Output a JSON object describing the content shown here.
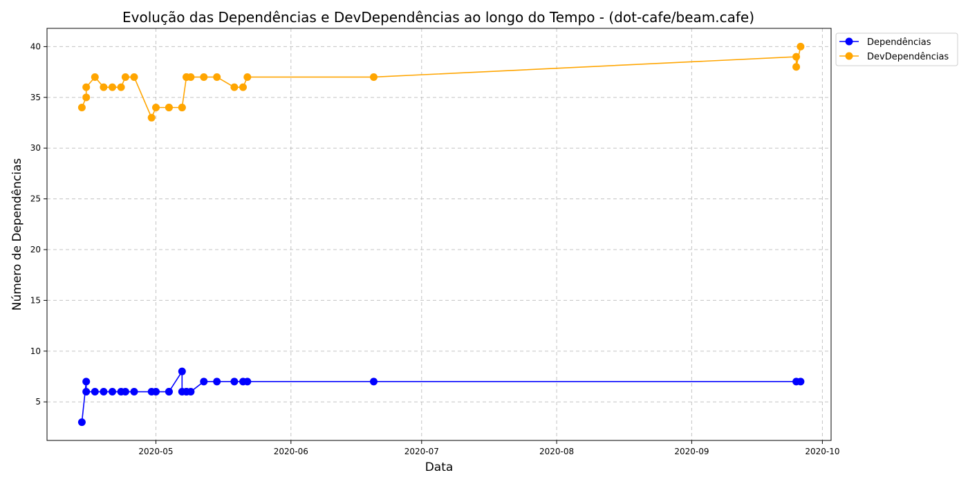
{
  "chart_data": {
    "type": "line",
    "title": "Evolução das Dependências e DevDependências ao longo do Tempo - (dot-cafe/beam.cafe)",
    "xlabel": "Data",
    "ylabel": "Número de Dependências",
    "x_tick_labels": [
      "2020-05",
      "2020-06",
      "2020-07",
      "2020-08",
      "2020-09",
      "2020-10"
    ],
    "x_ticks": [
      "2020-05-01",
      "2020-06-01",
      "2020-07-01",
      "2020-08-01",
      "2020-09-01",
      "2020-10-01"
    ],
    "y_ticks": [
      5,
      10,
      15,
      20,
      25,
      30,
      35,
      40
    ],
    "xlim": [
      "2020-04-06",
      "2020-10-03"
    ],
    "ylim": [
      1.2,
      41.8
    ],
    "grid": true,
    "legend_position": "outside-top-right",
    "series": [
      {
        "name": "Dependências",
        "color": "#0000ff",
        "x": [
          "2020-04-14",
          "2020-04-15",
          "2020-04-15",
          "2020-04-17",
          "2020-04-19",
          "2020-04-21",
          "2020-04-23",
          "2020-04-24",
          "2020-04-26",
          "2020-04-30",
          "2020-05-01",
          "2020-05-04",
          "2020-05-04",
          "2020-05-07",
          "2020-05-07",
          "2020-05-08",
          "2020-05-08",
          "2020-05-09",
          "2020-05-12",
          "2020-05-15",
          "2020-05-19",
          "2020-05-21",
          "2020-05-22",
          "2020-06-20",
          "2020-09-25",
          "2020-09-26"
        ],
        "y": [
          3,
          7,
          6,
          6,
          6,
          6,
          6,
          6,
          6,
          6,
          6,
          6,
          6,
          8,
          6,
          6,
          6,
          6,
          7,
          7,
          7,
          7,
          7,
          7,
          7,
          7
        ]
      },
      {
        "name": "DevDependências",
        "color": "#ffa500",
        "x": [
          "2020-04-14",
          "2020-04-15",
          "2020-04-15",
          "2020-04-17",
          "2020-04-19",
          "2020-04-21",
          "2020-04-23",
          "2020-04-24",
          "2020-04-26",
          "2020-04-30",
          "2020-05-01",
          "2020-05-04",
          "2020-05-04",
          "2020-05-07",
          "2020-05-07",
          "2020-05-08",
          "2020-05-08",
          "2020-05-09",
          "2020-05-12",
          "2020-05-15",
          "2020-05-19",
          "2020-05-21",
          "2020-05-22",
          "2020-06-20",
          "2020-09-25",
          "2020-09-25",
          "2020-09-26"
        ],
        "y": [
          34,
          35,
          36,
          37,
          36,
          36,
          36,
          37,
          37,
          33,
          34,
          34,
          34,
          34,
          34,
          37,
          37,
          37,
          37,
          37,
          36,
          36,
          37,
          37,
          39,
          38,
          40
        ]
      }
    ]
  }
}
